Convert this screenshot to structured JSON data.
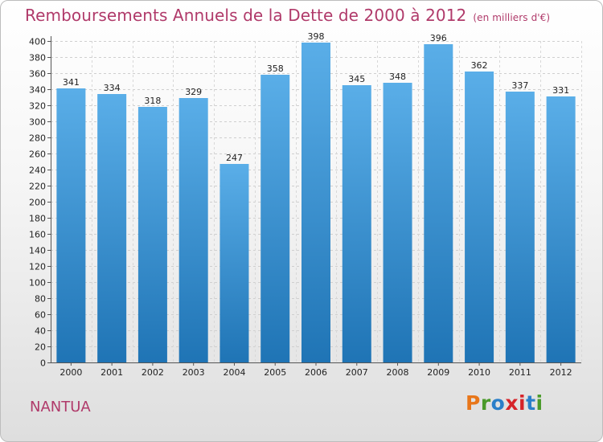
{
  "title": "Remboursements Annuels de la Dette de 2000 à 2012",
  "unit": "(en milliers d'€)",
  "place": "NANTUA",
  "logo": {
    "letters": [
      "P",
      "r",
      "o",
      "x",
      "i",
      "t",
      "i"
    ],
    "colors": [
      "#e8761a",
      "#4a9a2a",
      "#2a7fc9",
      "#d6242a",
      "#d6242a",
      "#2a7fc9",
      "#4a9a2a"
    ]
  },
  "colors": {
    "bar_light": "#5aaee8",
    "bar_dark": "#1f74b5",
    "title": "#b03a6a"
  },
  "chart_data": {
    "type": "bar",
    "categories": [
      "2000",
      "2001",
      "2002",
      "2003",
      "2004",
      "2005",
      "2006",
      "2007",
      "2008",
      "2009",
      "2010",
      "2011",
      "2012"
    ],
    "values": [
      341,
      334,
      318,
      329,
      247,
      358,
      398,
      345,
      348,
      396,
      362,
      337,
      331
    ],
    "ylim": [
      0,
      400
    ],
    "ytick_step": 20,
    "grid": true
  }
}
